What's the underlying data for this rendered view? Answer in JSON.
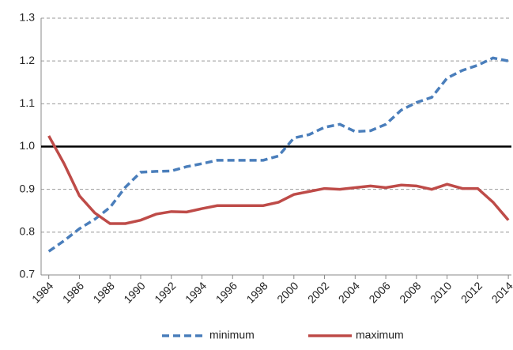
{
  "chart_data": {
    "type": "line",
    "x": [
      1984,
      1985,
      1986,
      1987,
      1988,
      1989,
      1990,
      1991,
      1992,
      1993,
      1994,
      1995,
      1996,
      1997,
      1998,
      1999,
      2000,
      2001,
      2002,
      2003,
      2004,
      2005,
      2006,
      2007,
      2008,
      2009,
      2010,
      2011,
      2012,
      2013,
      2014
    ],
    "series": [
      {
        "name": "minimum",
        "color": "#4a7ebb",
        "line_style": "dashed",
        "values": [
          0.755,
          0.78,
          0.808,
          0.83,
          0.858,
          0.905,
          0.94,
          0.942,
          0.943,
          0.953,
          0.96,
          0.968,
          0.968,
          0.968,
          0.968,
          0.978,
          1.02,
          1.028,
          1.045,
          1.052,
          1.035,
          1.037,
          1.052,
          1.085,
          1.103,
          1.115,
          1.16,
          1.178,
          1.19,
          1.207,
          1.2
        ]
      },
      {
        "name": "maximum",
        "color": "#be4b48",
        "line_style": "solid",
        "values": [
          1.025,
          0.96,
          0.885,
          0.845,
          0.82,
          0.82,
          0.828,
          0.842,
          0.848,
          0.847,
          0.855,
          0.862,
          0.862,
          0.862,
          0.862,
          0.87,
          0.888,
          0.895,
          0.902,
          0.9,
          0.904,
          0.908,
          0.904,
          0.91,
          0.908,
          0.9,
          0.912,
          0.902,
          0.902,
          0.87,
          0.828
        ]
      }
    ],
    "reference_line": {
      "value": 1,
      "color": "#000000"
    },
    "xlim": [
      1983.5,
      2014.2
    ],
    "xticks": [
      1984,
      1986,
      1988,
      1990,
      1992,
      1994,
      1996,
      1998,
      2000,
      2002,
      2004,
      2006,
      2008,
      2010,
      2012,
      2014
    ],
    "ylim": [
      0.7,
      1.3
    ],
    "yticks": [
      0.7,
      0.8,
      0.9,
      {
        "value": 1,
        "label": "1.0"
      },
      1.1,
      1.2,
      1.3
    ],
    "grid": true,
    "legend": "bottom"
  }
}
